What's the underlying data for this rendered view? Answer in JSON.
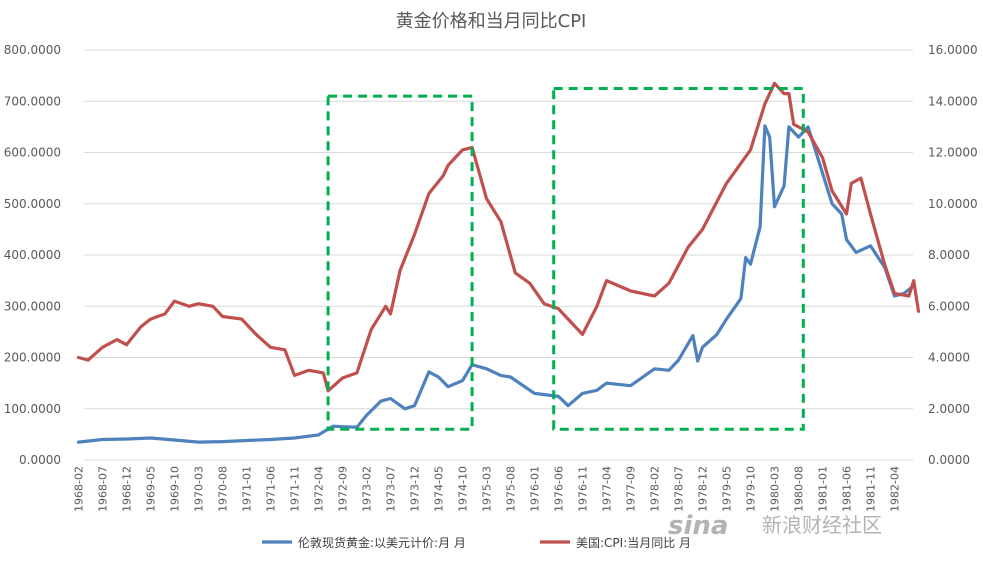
{
  "chart_data": {
    "type": "line",
    "title": "黄金价格和当月同比CPI",
    "x_labels": [
      "1968-02",
      "1968-07",
      "1968-12",
      "1969-05",
      "1969-10",
      "1970-03",
      "1970-08",
      "1971-01",
      "1971-06",
      "1971-11",
      "1972-04",
      "1972-09",
      "1973-02",
      "1973-07",
      "1973-12",
      "1974-05",
      "1974-10",
      "1975-03",
      "1975-08",
      "1976-01",
      "1976-06",
      "1976-11",
      "1977-04",
      "1977-09",
      "1978-02",
      "1978-07",
      "1978-12",
      "1979-05",
      "1979-10",
      "1980-03",
      "1980-08",
      "1981-01",
      "1981-06",
      "1981-11",
      "1982-04"
    ],
    "y_left": {
      "min": 0,
      "max": 800,
      "ticks": [
        "0.0000",
        "100.0000",
        "200.0000",
        "300.0000",
        "400.0000",
        "500.0000",
        "600.0000",
        "700.0000",
        "800.0000"
      ]
    },
    "y_right": {
      "min": 0,
      "max": 16,
      "ticks": [
        "0.0000",
        "2.0000",
        "4.0000",
        "6.0000",
        "8.0000",
        "10.0000",
        "12.0000",
        "14.0000",
        "16.0000"
      ]
    },
    "series": [
      {
        "name": "伦敦现货黄金:以美元计价:月 月",
        "axis": "left",
        "color": "#4f81bd",
        "points": [
          [
            "1968-02",
            35
          ],
          [
            "1968-07",
            40
          ],
          [
            "1968-12",
            41
          ],
          [
            "1969-05",
            43
          ],
          [
            "1969-10",
            39
          ],
          [
            "1970-03",
            35
          ],
          [
            "1970-08",
            36
          ],
          [
            "1971-01",
            38
          ],
          [
            "1971-06",
            40
          ],
          [
            "1971-11",
            43
          ],
          [
            "1972-04",
            49
          ],
          [
            "1972-07",
            66
          ],
          [
            "1972-09",
            65
          ],
          [
            "1972-12",
            64
          ],
          [
            "1973-02",
            87
          ],
          [
            "1973-05",
            115
          ],
          [
            "1973-07",
            120
          ],
          [
            "1973-10",
            100
          ],
          [
            "1973-12",
            106
          ],
          [
            "1974-02",
            150
          ],
          [
            "1974-03",
            172
          ],
          [
            "1974-05",
            162
          ],
          [
            "1974-07",
            143
          ],
          [
            "1974-10",
            155
          ],
          [
            "1974-12",
            186
          ],
          [
            "1975-03",
            178
          ],
          [
            "1975-06",
            165
          ],
          [
            "1975-08",
            162
          ],
          [
            "1976-01",
            130
          ],
          [
            "1976-06",
            124
          ],
          [
            "1976-08",
            106
          ],
          [
            "1976-11",
            130
          ],
          [
            "1977-02",
            136
          ],
          [
            "1977-04",
            150
          ],
          [
            "1977-09",
            145
          ],
          [
            "1978-02",
            178
          ],
          [
            "1978-05",
            175
          ],
          [
            "1978-07",
            195
          ],
          [
            "1978-10",
            243
          ],
          [
            "1978-11",
            193
          ],
          [
            "1978-12",
            220
          ],
          [
            "1979-03",
            245
          ],
          [
            "1979-05",
            275
          ],
          [
            "1979-08",
            315
          ],
          [
            "1979-09",
            395
          ],
          [
            "1979-10",
            382
          ],
          [
            "1979-12",
            455
          ],
          [
            "1980-01",
            652
          ],
          [
            "1980-02",
            630
          ],
          [
            "1980-03",
            494
          ],
          [
            "1980-05",
            535
          ],
          [
            "1980-06",
            650
          ],
          [
            "1980-08",
            630
          ],
          [
            "1980-10",
            650
          ],
          [
            "1981-01",
            560
          ],
          [
            "1981-03",
            500
          ],
          [
            "1981-05",
            480
          ],
          [
            "1981-06",
            430
          ],
          [
            "1981-08",
            405
          ],
          [
            "1981-11",
            418
          ],
          [
            "1982-02",
            375
          ],
          [
            "1982-04",
            320
          ],
          [
            "1982-06",
            325
          ],
          [
            "1982-08",
            340
          ]
        ]
      },
      {
        "name": "美国:CPI:当月同比 月",
        "axis": "right",
        "color": "#c0504d",
        "points": [
          [
            "1968-02",
            4.0
          ],
          [
            "1968-04",
            3.9
          ],
          [
            "1968-07",
            4.4
          ],
          [
            "1968-10",
            4.7
          ],
          [
            "1968-12",
            4.5
          ],
          [
            "1969-03",
            5.2
          ],
          [
            "1969-05",
            5.5
          ],
          [
            "1969-08",
            5.7
          ],
          [
            "1969-10",
            6.2
          ],
          [
            "1970-01",
            6.0
          ],
          [
            "1970-03",
            6.1
          ],
          [
            "1970-06",
            6.0
          ],
          [
            "1970-08",
            5.6
          ],
          [
            "1970-12",
            5.5
          ],
          [
            "1971-03",
            4.9
          ],
          [
            "1971-06",
            4.4
          ],
          [
            "1971-09",
            4.3
          ],
          [
            "1971-11",
            3.3
          ],
          [
            "1972-02",
            3.5
          ],
          [
            "1972-05",
            3.4
          ],
          [
            "1972-06",
            2.7
          ],
          [
            "1972-09",
            3.2
          ],
          [
            "1972-12",
            3.4
          ],
          [
            "1973-03",
            5.1
          ],
          [
            "1973-06",
            6.0
          ],
          [
            "1973-07",
            5.7
          ],
          [
            "1973-09",
            7.4
          ],
          [
            "1973-12",
            8.8
          ],
          [
            "1974-03",
            10.4
          ],
          [
            "1974-06",
            11.1
          ],
          [
            "1974-07",
            11.5
          ],
          [
            "1974-10",
            12.1
          ],
          [
            "1974-12",
            12.2
          ],
          [
            "1975-03",
            10.2
          ],
          [
            "1975-06",
            9.3
          ],
          [
            "1975-09",
            7.3
          ],
          [
            "1975-12",
            6.9
          ],
          [
            "1976-03",
            6.1
          ],
          [
            "1976-06",
            5.9
          ],
          [
            "1976-08",
            5.5
          ],
          [
            "1976-11",
            4.9
          ],
          [
            "1977-02",
            6.0
          ],
          [
            "1977-04",
            7.0
          ],
          [
            "1977-09",
            6.6
          ],
          [
            "1978-02",
            6.4
          ],
          [
            "1978-05",
            6.9
          ],
          [
            "1978-09",
            8.3
          ],
          [
            "1978-12",
            9.0
          ],
          [
            "1979-05",
            10.8
          ],
          [
            "1979-10",
            12.1
          ],
          [
            "1980-01",
            13.9
          ],
          [
            "1980-03",
            14.7
          ],
          [
            "1980-05",
            14.3
          ],
          [
            "1980-06",
            14.3
          ],
          [
            "1980-07",
            13.1
          ],
          [
            "1980-10",
            12.8
          ],
          [
            "1981-01",
            11.8
          ],
          [
            "1981-03",
            10.5
          ],
          [
            "1981-06",
            9.6
          ],
          [
            "1981-07",
            10.8
          ],
          [
            "1981-09",
            11.0
          ],
          [
            "1981-11",
            9.6
          ],
          [
            "1982-02",
            7.6
          ],
          [
            "1982-04",
            6.5
          ],
          [
            "1982-07",
            6.4
          ],
          [
            "1982-08",
            7.0
          ],
          [
            "1982-09",
            5.8
          ]
        ]
      }
    ],
    "annotations": [
      {
        "type": "dashed-box",
        "color": "#00b050",
        "x_from": "1972-06",
        "x_to": "1974-12",
        "y_left_from": 60,
        "y_left_to": 710
      },
      {
        "type": "dashed-box",
        "color": "#00b050",
        "x_from": "1976-05",
        "x_to": "1980-09",
        "y_left_from": 60,
        "y_left_to": 725
      }
    ],
    "grid": "horizontal",
    "legend_position": "bottom"
  },
  "watermark": {
    "logo": "sina",
    "text": "新浪财经社区"
  }
}
